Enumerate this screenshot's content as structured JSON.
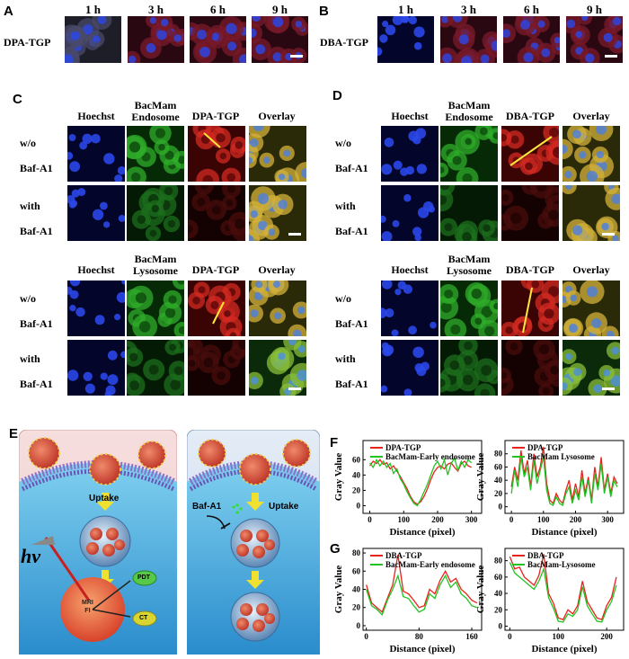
{
  "panels": {
    "A": "A",
    "B": "B",
    "C": "C",
    "D": "D",
    "E": "E",
    "F": "F",
    "G": "G"
  },
  "timepoints": [
    "1 h",
    "3 h",
    "6 h",
    "9 h"
  ],
  "rowA": "DPA-TGP",
  "rowB": "DBA-TGP",
  "colsC_endo": {
    "c1": "Hoechst",
    "c2a": "BacMam",
    "c2b": "Endosome",
    "c3": "DPA-TGP",
    "c4": "Overlay"
  },
  "colsD_endo": {
    "c1": "Hoechst",
    "c2a": "BacMam",
    "c2b": "Endosome",
    "c3": "DBA-TGP",
    "c4": "Overlay"
  },
  "colsC_lyso": {
    "c1": "Hoechst",
    "c2a": "BacMam",
    "c2b": "Lysosome",
    "c3": "DPA-TGP",
    "c4": "Overlay"
  },
  "colsD_lyso": {
    "c1": "Hoechst",
    "c2a": "BacMam",
    "c2b": "Lysosome",
    "c3": "DBA-TGP",
    "c4": "Overlay"
  },
  "rows": {
    "wo1": "w/o",
    "wo2": "Baf-A1",
    "with1": "with",
    "with2": "Baf-A1"
  },
  "schematic": {
    "uptake1": "Uptake",
    "uptake2": "Uptake",
    "baf": "Baf-A1",
    "hv": "hν",
    "mri": "MRI",
    "fi": "FI",
    "pdt": "PDT",
    "ct": "CT"
  },
  "colors": {
    "red": "#e8221c",
    "green": "#22c322",
    "nucleus": "#2a47e8"
  },
  "chart_data": [
    {
      "id": "F-left",
      "type": "line",
      "xlabel": "Distance (pixel)",
      "ylabel": "Gray Value",
      "xlim": [
        -20,
        330
      ],
      "ylim": [
        -10,
        85
      ],
      "xticks": [
        0,
        100,
        200,
        300
      ],
      "yticks": [
        0,
        20,
        40,
        60
      ],
      "series": [
        {
          "name": "DPA-TGP",
          "color": "#e8221c",
          "x": [
            0,
            10,
            20,
            30,
            40,
            50,
            60,
            70,
            80,
            90,
            100,
            110,
            120,
            130,
            140,
            150,
            160,
            170,
            180,
            190,
            200,
            210,
            220,
            230,
            240,
            250,
            260,
            270,
            280,
            290,
            300
          ],
          "values": [
            52,
            58,
            55,
            60,
            54,
            56,
            48,
            52,
            45,
            38,
            30,
            22,
            12,
            5,
            2,
            5,
            12,
            22,
            34,
            44,
            50,
            52,
            48,
            54,
            56,
            50,
            45,
            55,
            58,
            52,
            50
          ]
        },
        {
          "name": "BacMam-Early endosome",
          "color": "#22c322",
          "x": [
            0,
            10,
            20,
            30,
            40,
            50,
            60,
            70,
            80,
            90,
            100,
            110,
            120,
            130,
            140,
            150,
            160,
            170,
            180,
            190,
            200,
            210,
            220,
            230,
            240,
            250,
            260,
            270,
            280,
            290,
            300
          ],
          "values": [
            56,
            50,
            60,
            52,
            58,
            50,
            55,
            42,
            48,
            35,
            28,
            18,
            10,
            3,
            0,
            8,
            18,
            28,
            40,
            52,
            58,
            48,
            60,
            40,
            55,
            62,
            46,
            58,
            50,
            60,
            56
          ]
        }
      ]
    },
    {
      "id": "F-right",
      "type": "line",
      "xlabel": "Distance (pixel)",
      "ylabel": "Gray Value",
      "xlim": [
        -20,
        350
      ],
      "ylim": [
        -10,
        100
      ],
      "xticks": [
        0,
        100,
        200,
        300
      ],
      "yticks": [
        0,
        20,
        40,
        60,
        80
      ],
      "series": [
        {
          "name": "DPA-TGP",
          "color": "#e8221c",
          "x": [
            0,
            10,
            20,
            30,
            40,
            50,
            60,
            70,
            80,
            90,
            100,
            110,
            120,
            130,
            140,
            150,
            160,
            170,
            180,
            190,
            200,
            210,
            220,
            230,
            240,
            250,
            260,
            270,
            280,
            290,
            300,
            310,
            320,
            330
          ],
          "values": [
            30,
            60,
            40,
            85,
            50,
            70,
            30,
            80,
            45,
            60,
            90,
            35,
            10,
            5,
            20,
            10,
            5,
            25,
            40,
            10,
            35,
            15,
            55,
            20,
            45,
            10,
            60,
            30,
            75,
            25,
            50,
            20,
            45,
            35
          ]
        },
        {
          "name": "BacMam Lysosome",
          "color": "#22c322",
          "x": [
            0,
            10,
            20,
            30,
            40,
            50,
            60,
            70,
            80,
            90,
            100,
            110,
            120,
            130,
            140,
            150,
            160,
            170,
            180,
            190,
            200,
            210,
            220,
            230,
            240,
            250,
            260,
            270,
            280,
            290,
            300,
            310,
            320,
            330
          ],
          "values": [
            20,
            55,
            30,
            75,
            45,
            60,
            25,
            70,
            35,
            55,
            75,
            25,
            5,
            2,
            15,
            5,
            2,
            20,
            30,
            5,
            25,
            10,
            45,
            15,
            40,
            5,
            50,
            25,
            65,
            20,
            45,
            15,
            40,
            30
          ]
        }
      ]
    },
    {
      "id": "G-left",
      "type": "line",
      "xlabel": "Distance (pixel)",
      "ylabel": "Gray Value",
      "xlim": [
        -5,
        175
      ],
      "ylim": [
        -5,
        85
      ],
      "xticks": [
        0,
        80,
        160
      ],
      "yticks": [
        0,
        20,
        40,
        60,
        80
      ],
      "series": [
        {
          "name": "DBA-TGP",
          "color": "#e8221c",
          "x": [
            0,
            8,
            16,
            24,
            32,
            40,
            48,
            56,
            64,
            72,
            80,
            88,
            96,
            104,
            112,
            120,
            128,
            136,
            144,
            152,
            160,
            168
          ],
          "values": [
            45,
            25,
            20,
            15,
            30,
            45,
            78,
            38,
            35,
            28,
            20,
            22,
            40,
            35,
            50,
            60,
            48,
            52,
            40,
            35,
            28,
            25
          ]
        },
        {
          "name": "BacMam-Early endosome",
          "color": "#22c322",
          "x": [
            0,
            8,
            16,
            24,
            32,
            40,
            48,
            56,
            64,
            72,
            80,
            88,
            96,
            104,
            112,
            120,
            128,
            136,
            144,
            152,
            160,
            168
          ],
          "values": [
            40,
            22,
            18,
            12,
            28,
            40,
            55,
            32,
            30,
            22,
            15,
            18,
            35,
            30,
            45,
            55,
            42,
            48,
            35,
            30,
            22,
            20
          ]
        }
      ]
    },
    {
      "id": "G-right",
      "type": "line",
      "xlabel": "Distance (pixel)",
      "ylabel": "Gray Value",
      "xlim": [
        -10,
        235
      ],
      "ylim": [
        -5,
        95
      ],
      "xticks": [
        0,
        100,
        200
      ],
      "yticks": [
        0,
        20,
        40,
        60,
        80
      ],
      "series": [
        {
          "name": "DBA-TGP",
          "color": "#e8221c",
          "x": [
            0,
            10,
            20,
            30,
            40,
            50,
            60,
            70,
            80,
            90,
            100,
            110,
            120,
            130,
            140,
            150,
            160,
            170,
            180,
            190,
            200,
            210,
            220
          ],
          "values": [
            85,
            70,
            72,
            60,
            55,
            50,
            62,
            88,
            40,
            28,
            10,
            8,
            20,
            15,
            25,
            55,
            30,
            20,
            10,
            8,
            25,
            35,
            60
          ]
        },
        {
          "name": "BacMam-Lysosome",
          "color": "#22c322",
          "x": [
            0,
            10,
            20,
            30,
            40,
            50,
            60,
            70,
            80,
            90,
            100,
            110,
            120,
            130,
            140,
            150,
            160,
            170,
            180,
            190,
            200,
            210,
            220
          ],
          "values": [
            78,
            65,
            60,
            55,
            50,
            45,
            55,
            70,
            35,
            22,
            6,
            5,
            15,
            12,
            20,
            48,
            25,
            15,
            6,
            5,
            20,
            30,
            50
          ]
        }
      ]
    }
  ]
}
